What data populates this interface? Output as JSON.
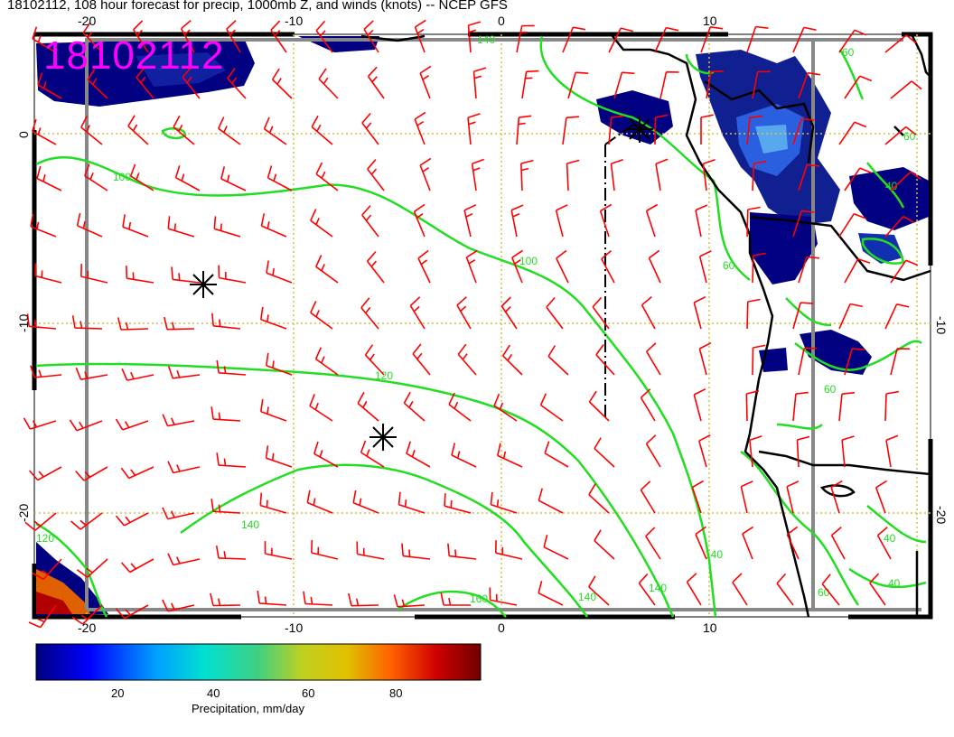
{
  "map": {
    "title": "18102112, 108 hour forecast for precip, 1000mb Z, and winds (knots) -- NCEP GFS",
    "stamp": "18102112",
    "x_ticks_top": [
      "-20",
      "-10",
      "0",
      "10"
    ],
    "x_ticks_bottom": [
      "-20",
      "-10",
      "0",
      "10"
    ],
    "y_ticks_left": [
      "0",
      "-10",
      "-20"
    ],
    "y_ticks_right": [
      "-10",
      "-20"
    ],
    "contour_labels": [
      "100",
      "100",
      "120",
      "140",
      "140",
      "160",
      "140",
      "140",
      "120",
      "60",
      "60",
      "60",
      "40",
      "40",
      "60",
      "60",
      "40",
      "140"
    ]
  },
  "colorbar": {
    "ticks": [
      "20",
      "40",
      "60",
      "80"
    ],
    "label": "Precipitation, mm/day",
    "colors": [
      "#000080",
      "#0000ff",
      "#00a0ff",
      "#00e0d0",
      "#40d080",
      "#a0d040",
      "#e0d000",
      "#ff8000",
      "#e00000",
      "#800000"
    ]
  },
  "colors": {
    "contour": "#22dd22",
    "barb": "#ff0000",
    "grid": "#d4c040",
    "precip_dark": "#000080",
    "precip_mid": "#2040d0",
    "coast": "#000000"
  }
}
